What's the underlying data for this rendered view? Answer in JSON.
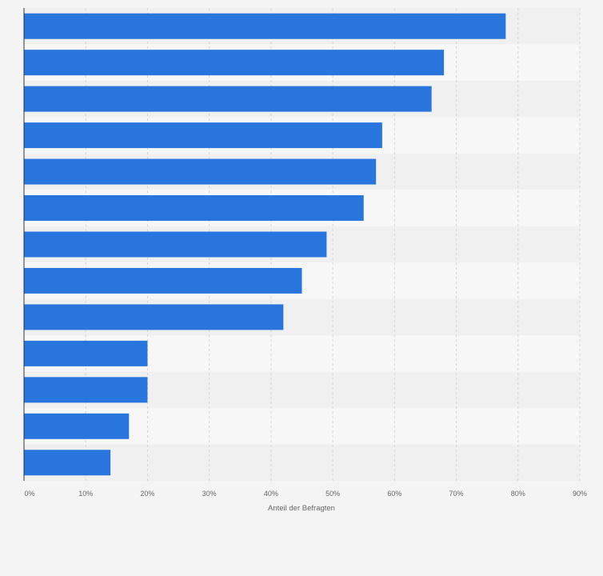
{
  "chart_data": {
    "type": "bar",
    "orientation": "horizontal",
    "categories": [
      "",
      "",
      "",
      "",
      "",
      "",
      "",
      "",
      "",
      "",
      "",
      "",
      ""
    ],
    "values": [
      78,
      68,
      66,
      58,
      57,
      55,
      49,
      45,
      42,
      20,
      20,
      17,
      14
    ],
    "xlabel": "Anteil der Befragten",
    "ylabel": "",
    "xlim": [
      0,
      90
    ],
    "x_ticks": [
      "0%",
      "10%",
      "20%",
      "30%",
      "40%",
      "50%",
      "60%",
      "70%",
      "80%",
      "90%"
    ],
    "grid": true,
    "legend": "none",
    "colors": {
      "bar": "#2876dd",
      "band_light": "#f7f7f7",
      "band_dark": "#f0f0f0",
      "grid": "#d4d4d4",
      "axis": "#333333"
    }
  }
}
